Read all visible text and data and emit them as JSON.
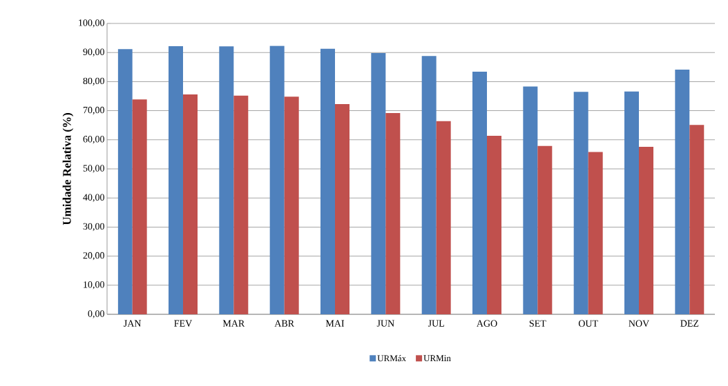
{
  "chart_data": {
    "type": "bar",
    "ylabel": "Umidade Relativa (%)",
    "categories": [
      "JAN",
      "FEV",
      "MAR",
      "ABR",
      "MAI",
      "JUN",
      "JUL",
      "AGO",
      "SET",
      "OUT",
      "NOV",
      "DEZ"
    ],
    "series": [
      {
        "name": "URMáx",
        "color": "#4f81bd",
        "values": [
          91.2,
          92.2,
          92.1,
          92.3,
          91.3,
          89.8,
          88.8,
          83.4,
          78.3,
          76.5,
          76.6,
          84.1
        ]
      },
      {
        "name": "URMin",
        "color": "#c0504d",
        "values": [
          73.9,
          75.6,
          75.2,
          74.8,
          72.3,
          69.2,
          66.4,
          61.4,
          57.9,
          55.8,
          57.6,
          65.1
        ]
      }
    ],
    "ylim": [
      0,
      100
    ],
    "yticks": [
      {
        "value": 0,
        "label": "0,00"
      },
      {
        "value": 10,
        "label": "10,00"
      },
      {
        "value": 20,
        "label": "20,00"
      },
      {
        "value": 30,
        "label": "30,00"
      },
      {
        "value": 40,
        "label": "40,00"
      },
      {
        "value": 50,
        "label": "50,00"
      },
      {
        "value": 60,
        "label": "60,00"
      },
      {
        "value": 70,
        "label": "70,00"
      },
      {
        "value": 80,
        "label": "80,00"
      },
      {
        "value": 90,
        "label": "90,00"
      },
      {
        "value": 100,
        "label": "100,00"
      }
    ],
    "grid": "y",
    "legend": "bottom"
  }
}
